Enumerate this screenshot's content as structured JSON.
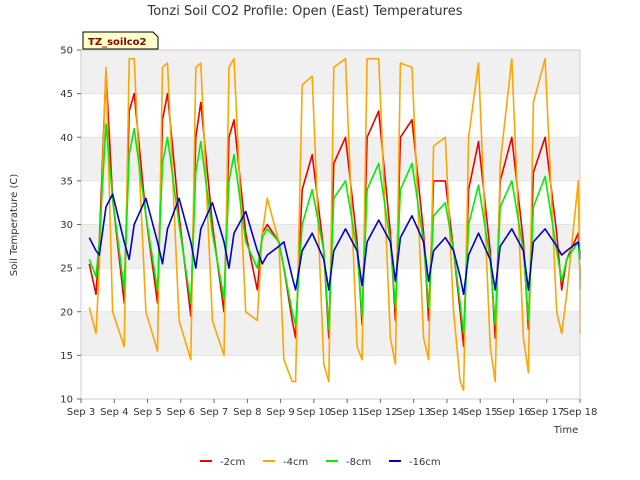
{
  "chart_data": {
    "type": "line",
    "title": "Tonzi Soil CO2 Profile: Open (East) Temperatures",
    "xlabel": "Time",
    "ylabel": "Soil Temperature (C)",
    "tag_label": "TZ_soilco2",
    "xlim": [
      3,
      18
    ],
    "ylim": [
      10,
      50
    ],
    "x_ticks": [
      3,
      4,
      5,
      6,
      7,
      8,
      9,
      10,
      11,
      12,
      13,
      14,
      15,
      16,
      17,
      18
    ],
    "x_tick_labels": [
      "Sep 3",
      "Sep 4",
      "Sep 5",
      "Sep 6",
      "Sep 7",
      "Sep 8",
      "Sep 9",
      "Sep 10",
      "Sep 11",
      "Sep 12",
      "Sep 13",
      "Sep 14",
      "Sep 15",
      "Sep 16",
      "Sep 17",
      "Sep 18"
    ],
    "y_ticks": [
      10,
      15,
      20,
      25,
      30,
      35,
      40,
      45,
      50
    ],
    "grid": true,
    "legend_position": "bottom",
    "colors": {
      "plot_band": "#f0f0f0",
      "grid": "#dddddd",
      "tag_fill": "#ffffcc"
    },
    "series": [
      {
        "name": "-2cm",
        "color": "#ee0000",
        "x": [
          3.25,
          3.45,
          3.55,
          3.75,
          3.95,
          4.3,
          4.45,
          4.6,
          4.95,
          5.3,
          5.45,
          5.6,
          5.95,
          6.3,
          6.45,
          6.6,
          6.95,
          7.3,
          7.45,
          7.6,
          7.95,
          8.3,
          8.45,
          8.6,
          8.95,
          9.1,
          9.35,
          9.45,
          9.65,
          9.95,
          10.3,
          10.45,
          10.6,
          10.95,
          11.3,
          11.45,
          11.6,
          11.95,
          12.3,
          12.45,
          12.6,
          12.95,
          13.3,
          13.45,
          13.6,
          13.95,
          14.2,
          14.4,
          14.5,
          14.65,
          14.95,
          15.3,
          15.45,
          15.6,
          15.95,
          16.3,
          16.45,
          16.6,
          16.95,
          17.3,
          17.45,
          17.6,
          17.95,
          18.05,
          18.3
        ],
        "y": [
          25.5,
          22.0,
          28.0,
          47.5,
          33.0,
          21.0,
          43.0,
          45.0,
          31.0,
          21.0,
          42.0,
          45.0,
          31.0,
          19.5,
          40.0,
          44.0,
          30.0,
          20.0,
          40.0,
          42.0,
          29.0,
          22.5,
          29.0,
          30.0,
          28.0,
          25.0,
          19.0,
          17.0,
          34.0,
          38.0,
          27.0,
          17.0,
          37.0,
          40.0,
          28.0,
          18.5,
          40.0,
          43.0,
          29.0,
          19.0,
          40.0,
          42.0,
          29.0,
          19.0,
          35.0,
          35.0,
          27.0,
          20.0,
          16.0,
          34.0,
          39.5,
          27.0,
          17.0,
          35.0,
          40.0,
          28.0,
          18.0,
          36.0,
          40.0,
          29.0,
          22.5,
          26.0,
          29.0,
          25.0,
          22.5
        ]
      },
      {
        "name": "-4cm",
        "color": "#ffa500",
        "x": [
          3.25,
          3.45,
          3.55,
          3.75,
          3.95,
          4.3,
          4.45,
          4.6,
          4.95,
          5.3,
          5.45,
          5.6,
          5.95,
          6.3,
          6.45,
          6.6,
          6.95,
          7.3,
          7.45,
          7.6,
          7.95,
          8.3,
          8.45,
          8.6,
          8.95,
          9.1,
          9.35,
          9.45,
          9.65,
          9.95,
          10.3,
          10.45,
          10.6,
          10.95,
          11.3,
          11.45,
          11.6,
          11.95,
          12.3,
          12.45,
          12.6,
          12.95,
          13.3,
          13.45,
          13.6,
          13.95,
          14.2,
          14.4,
          14.5,
          14.65,
          14.95,
          15.3,
          15.45,
          15.6,
          15.95,
          16.3,
          16.45,
          16.6,
          16.95,
          17.3,
          17.45,
          17.6,
          17.95,
          18.05,
          18.3
        ],
        "y": [
          20.5,
          17.5,
          25.0,
          48.0,
          20.0,
          16.0,
          49.0,
          49.0,
          20.0,
          15.5,
          48.0,
          48.5,
          19.0,
          14.5,
          48.0,
          48.5,
          19.0,
          15.0,
          48.0,
          49.0,
          20.0,
          19.0,
          29.0,
          33.0,
          28.0,
          14.5,
          12.0,
          12.0,
          46.0,
          47.0,
          14.0,
          12.0,
          48.0,
          49.0,
          16.0,
          14.5,
          49.0,
          49.0,
          17.0,
          14.0,
          48.5,
          48.0,
          17.0,
          14.5,
          39.0,
          40.0,
          20.0,
          12.0,
          11.0,
          40.0,
          48.5,
          16.0,
          12.0,
          37.0,
          49.0,
          17.0,
          13.0,
          44.0,
          49.0,
          20.0,
          17.5,
          22.0,
          35.0,
          22.0,
          17.5
        ]
      },
      {
        "name": "-8cm",
        "color": "#00ee00",
        "x": [
          3.25,
          3.45,
          3.55,
          3.75,
          3.95,
          4.3,
          4.45,
          4.6,
          4.95,
          5.3,
          5.45,
          5.6,
          5.95,
          6.3,
          6.45,
          6.6,
          6.95,
          7.3,
          7.45,
          7.6,
          7.95,
          8.3,
          8.45,
          8.6,
          8.95,
          9.1,
          9.35,
          9.45,
          9.65,
          9.95,
          10.3,
          10.45,
          10.6,
          10.95,
          11.3,
          11.45,
          11.6,
          11.95,
          12.3,
          12.45,
          12.6,
          12.95,
          13.3,
          13.45,
          13.6,
          13.95,
          14.2,
          14.4,
          14.5,
          14.65,
          14.95,
          15.3,
          15.45,
          15.6,
          15.95,
          16.3,
          16.45,
          16.6,
          16.95,
          17.3,
          17.45,
          17.6,
          17.95,
          18.05,
          18.3
        ],
        "y": [
          26.0,
          24.0,
          28.0,
          41.5,
          33.0,
          22.5,
          38.0,
          41.0,
          31.0,
          22.5,
          37.0,
          40.0,
          30.0,
          21.0,
          36.0,
          39.5,
          29.0,
          21.5,
          35.0,
          38.0,
          28.0,
          25.0,
          28.5,
          29.5,
          28.0,
          25.0,
          20.0,
          18.5,
          30.0,
          34.0,
          27.0,
          18.0,
          33.0,
          35.0,
          27.0,
          19.5,
          34.0,
          37.0,
          28.0,
          20.5,
          34.0,
          37.0,
          28.0,
          20.5,
          31.0,
          32.5,
          27.0,
          21.0,
          17.5,
          30.0,
          34.5,
          26.0,
          18.5,
          32.0,
          35.0,
          27.0,
          19.0,
          32.0,
          35.5,
          27.0,
          23.5,
          26.0,
          28.0,
          25.0,
          23.5
        ]
      },
      {
        "name": "-16cm",
        "color": "#0000cc",
        "x": [
          3.25,
          3.45,
          3.55,
          3.75,
          3.95,
          4.3,
          4.45,
          4.6,
          4.95,
          5.3,
          5.45,
          5.6,
          5.95,
          6.3,
          6.45,
          6.6,
          6.95,
          7.3,
          7.45,
          7.6,
          7.95,
          8.3,
          8.45,
          8.6,
          8.95,
          9.1,
          9.35,
          9.45,
          9.65,
          9.95,
          10.3,
          10.45,
          10.6,
          10.95,
          11.3,
          11.45,
          11.6,
          11.95,
          12.3,
          12.45,
          12.6,
          12.95,
          13.3,
          13.45,
          13.6,
          13.95,
          14.2,
          14.4,
          14.5,
          14.65,
          14.95,
          15.3,
          15.45,
          15.6,
          15.95,
          16.3,
          16.45,
          16.6,
          16.95,
          17.3,
          17.45,
          17.6,
          17.95,
          18.05,
          18.3
        ],
        "y": [
          28.5,
          27.0,
          26.5,
          32.0,
          33.5,
          28.0,
          26.0,
          30.0,
          33.0,
          28.0,
          25.5,
          29.5,
          33.0,
          28.0,
          25.0,
          29.5,
          32.5,
          28.0,
          25.0,
          29.0,
          31.5,
          27.0,
          25.5,
          26.5,
          27.5,
          28.0,
          24.0,
          22.5,
          27.0,
          29.0,
          26.0,
          22.5,
          27.0,
          29.5,
          27.0,
          23.0,
          28.0,
          30.5,
          28.0,
          23.5,
          28.5,
          31.0,
          28.0,
          23.5,
          27.0,
          28.5,
          27.0,
          24.0,
          22.0,
          26.5,
          29.0,
          26.0,
          22.5,
          27.5,
          29.5,
          27.0,
          22.5,
          28.0,
          29.5,
          27.5,
          26.5,
          27.0,
          28.0,
          27.0,
          26.0
        ]
      }
    ]
  }
}
